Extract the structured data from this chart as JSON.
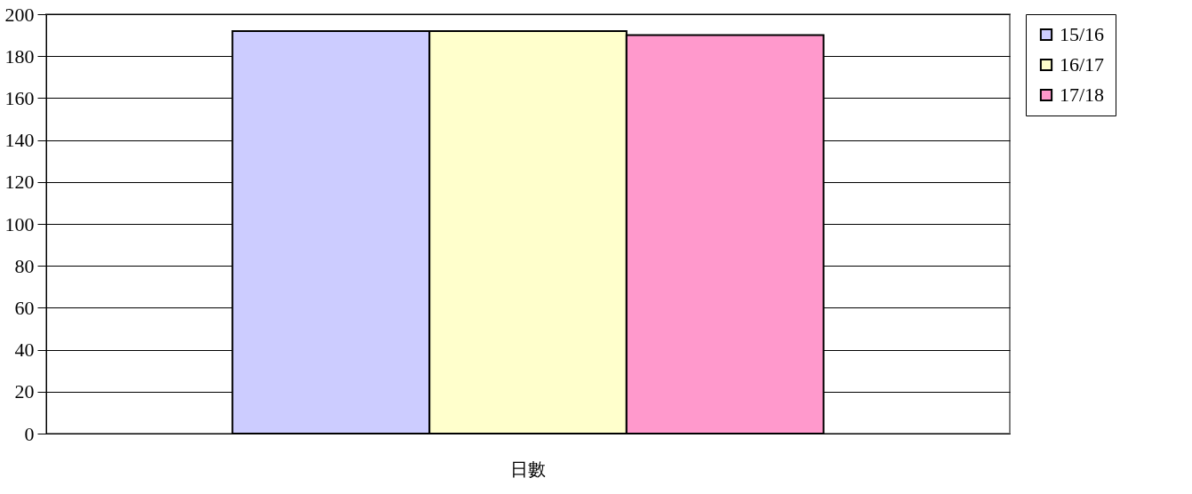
{
  "chart_data": {
    "type": "bar",
    "categories": [
      "日數"
    ],
    "series": [
      {
        "name": "15/16",
        "color": "#ccccff",
        "values": [
          192
        ]
      },
      {
        "name": "16/17",
        "color": "#ffffcc",
        "values": [
          192
        ]
      },
      {
        "name": "17/18",
        "color": "#ff99cc",
        "values": [
          190
        ]
      }
    ],
    "ylim": [
      0,
      200
    ],
    "yticks": [
      0,
      20,
      40,
      60,
      80,
      100,
      120,
      140,
      160,
      180,
      200
    ],
    "grid": "y",
    "legend": "right"
  }
}
